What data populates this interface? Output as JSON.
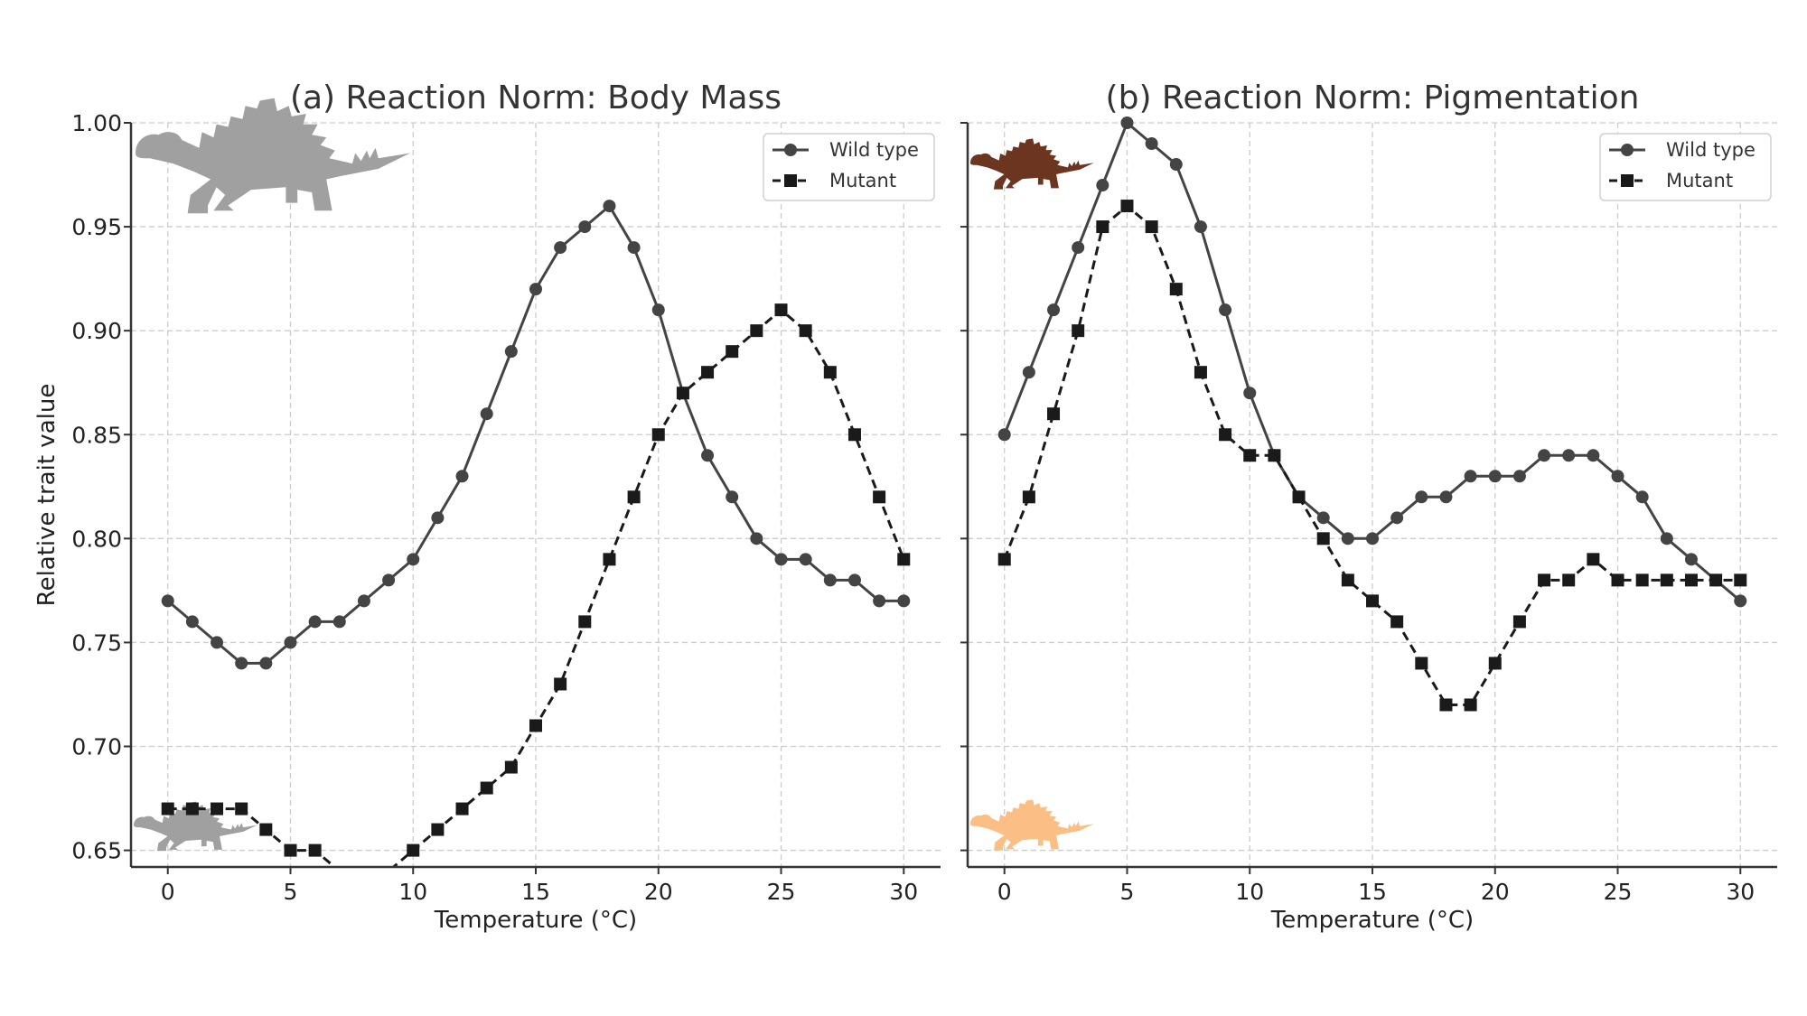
{
  "chart_data": [
    {
      "type": "line",
      "title": "(a) Reaction Norm: Body Mass",
      "xlabel": "Temperature (°C)",
      "ylabel": "Relative trait value",
      "xlim": [
        -1.5,
        31.5
      ],
      "ylim": [
        0.642,
        1.0
      ],
      "xticks": [
        0,
        5,
        10,
        15,
        20,
        25,
        30
      ],
      "xtick_labels": [
        "0",
        "5",
        "10",
        "15",
        "20",
        "25",
        "30"
      ],
      "yticks": [
        0.65,
        0.7,
        0.75,
        0.8,
        0.85,
        0.9,
        0.95,
        1.0
      ],
      "ytick_labels": [
        "0.65",
        "0.70",
        "0.75",
        "0.80",
        "0.85",
        "0.90",
        "0.95",
        "1.00"
      ],
      "grid": true,
      "legend_position": "top-right",
      "x": [
        0,
        1,
        2,
        3,
        4,
        5,
        6,
        7,
        8,
        9,
        10,
        11,
        12,
        13,
        14,
        15,
        16,
        17,
        18,
        19,
        20,
        21,
        22,
        23,
        24,
        25,
        26,
        27,
        28,
        29,
        30
      ],
      "series": [
        {
          "name": "Wild type",
          "style": "solid-circle",
          "color": "#444444",
          "values": [
            0.77,
            0.76,
            0.75,
            0.74,
            0.74,
            0.75,
            0.76,
            0.76,
            0.77,
            0.78,
            0.79,
            0.81,
            0.83,
            0.86,
            0.89,
            0.92,
            0.94,
            0.95,
            0.96,
            0.94,
            0.91,
            0.87,
            0.84,
            0.82,
            0.8,
            0.79,
            0.79,
            0.78,
            0.78,
            0.77,
            0.77
          ]
        },
        {
          "name": "Mutant",
          "style": "dashed-square",
          "color": "#1a1a1a",
          "values": [
            0.67,
            0.67,
            0.67,
            0.67,
            0.66,
            0.65,
            0.65,
            0.64,
            0.64,
            0.64,
            0.65,
            0.66,
            0.67,
            0.68,
            0.69,
            0.71,
            0.73,
            0.76,
            0.79,
            0.82,
            0.85,
            0.87,
            0.88,
            0.89,
            0.9,
            0.91,
            0.9,
            0.88,
            0.85,
            0.82,
            0.79
          ]
        }
      ],
      "icons": [
        {
          "name": "stegosaurus-icon-large",
          "color": "#a0a0a0",
          "position": "top-left"
        },
        {
          "name": "stegosaurus-icon-small",
          "color": "#a0a0a0",
          "position": "bottom-left"
        }
      ]
    },
    {
      "type": "line",
      "title": "(b) Reaction Norm: Pigmentation",
      "xlabel": "Temperature (°C)",
      "ylabel": "",
      "xlim": [
        -1.5,
        31.5
      ],
      "ylim": [
        0.642,
        1.0
      ],
      "xticks": [
        0,
        5,
        10,
        15,
        20,
        25,
        30
      ],
      "xtick_labels": [
        "0",
        "5",
        "10",
        "15",
        "20",
        "25",
        "30"
      ],
      "yticks": [
        0.65,
        0.7,
        0.75,
        0.8,
        0.85,
        0.9,
        0.95,
        1.0
      ],
      "grid": true,
      "legend_position": "top-right",
      "x": [
        0,
        1,
        2,
        3,
        4,
        5,
        6,
        7,
        8,
        9,
        10,
        11,
        12,
        13,
        14,
        15,
        16,
        17,
        18,
        19,
        20,
        21,
        22,
        23,
        24,
        25,
        26,
        27,
        28,
        29,
        30
      ],
      "series": [
        {
          "name": "Wild type",
          "style": "solid-circle",
          "color": "#444444",
          "values": [
            0.85,
            0.88,
            0.91,
            0.94,
            0.97,
            1.0,
            0.99,
            0.98,
            0.95,
            0.91,
            0.87,
            0.84,
            0.82,
            0.81,
            0.8,
            0.8,
            0.81,
            0.82,
            0.82,
            0.83,
            0.83,
            0.83,
            0.84,
            0.84,
            0.84,
            0.83,
            0.82,
            0.8,
            0.79,
            0.78,
            0.77
          ]
        },
        {
          "name": "Mutant",
          "style": "dashed-square",
          "color": "#1a1a1a",
          "values": [
            0.79,
            0.82,
            0.86,
            0.9,
            0.95,
            0.96,
            0.95,
            0.92,
            0.88,
            0.85,
            0.84,
            0.84,
            0.82,
            0.8,
            0.78,
            0.77,
            0.76,
            0.74,
            0.72,
            0.72,
            0.74,
            0.76,
            0.78,
            0.78,
            0.79,
            0.78,
            0.78,
            0.78,
            0.78,
            0.78,
            0.78
          ]
        }
      ],
      "icons": [
        {
          "name": "stegosaurus-icon-brown",
          "color": "#6b3520",
          "position": "top-left"
        },
        {
          "name": "stegosaurus-icon-orange",
          "color": "#fbbf85",
          "position": "bottom-left"
        }
      ]
    }
  ]
}
